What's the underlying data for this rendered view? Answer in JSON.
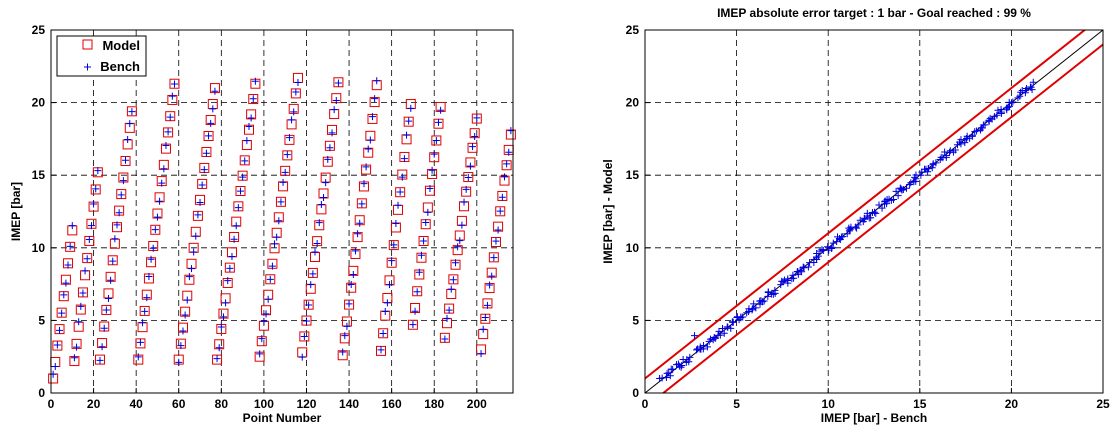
{
  "chart_data": [
    {
      "type": "scatter",
      "title": "",
      "xlabel": "Point Number",
      "ylabel": "IMEP [bar]",
      "xlim": [
        0,
        217
      ],
      "ylim": [
        0,
        25
      ],
      "xticks": [
        0,
        20,
        40,
        60,
        80,
        100,
        120,
        140,
        160,
        180,
        200
      ],
      "yticks": [
        0,
        5,
        10,
        15,
        20,
        25
      ],
      "grid": true,
      "legend": "top-left",
      "series": [
        {
          "name": "Model",
          "marker": "square",
          "color": "#e00000"
        },
        {
          "name": "Bench",
          "marker": "plus",
          "color": "#0000e0"
        }
      ],
      "sweeps": [
        {
          "start": 1,
          "n": 10,
          "lo": 1.0,
          "hi": 11.2
        },
        {
          "start": 11,
          "n": 12,
          "lo": 2.2,
          "hi": 15.2
        },
        {
          "start": 23,
          "n": 16,
          "lo": 2.3,
          "hi": 19.4
        },
        {
          "start": 41,
          "n": 18,
          "lo": 2.3,
          "hi": 21.3
        },
        {
          "start": 60,
          "n": 18,
          "lo": 2.3,
          "hi": 21.0
        },
        {
          "start": 78,
          "n": 19,
          "lo": 2.3,
          "hi": 21.3
        },
        {
          "start": 98,
          "n": 19,
          "lo": 2.5,
          "hi": 21.7
        },
        {
          "start": 118,
          "n": 18,
          "lo": 2.8,
          "hi": 21.4
        },
        {
          "start": 137,
          "n": 17,
          "lo": 2.6,
          "hi": 21.2
        },
        {
          "start": 155,
          "n": 15,
          "lo": 2.9,
          "hi": 19.9
        },
        {
          "start": 170,
          "n": 14,
          "lo": 4.7,
          "hi": 19.7
        },
        {
          "start": 185,
          "n": 16,
          "lo": 3.8,
          "hi": 18.9
        },
        {
          "start": 202,
          "n": 15,
          "lo": 3.0,
          "hi": 17.8
        }
      ]
    },
    {
      "type": "scatter",
      "title": "IMEP absolute error target : 1 bar - Goal reached : 99 %",
      "xlabel": "IMEP [bar] - Bench",
      "ylabel": "IMEP [bar] - Model",
      "xlim": [
        0,
        25
      ],
      "ylim": [
        0,
        25
      ],
      "xticks": [
        0,
        5,
        10,
        15,
        20,
        25
      ],
      "yticks": [
        0,
        5,
        10,
        15,
        20,
        25
      ],
      "grid": true,
      "reference_lines": [
        {
          "kind": "identity",
          "offset": 0,
          "color": "#000000"
        },
        {
          "kind": "tolerance",
          "offset": 1,
          "color": "#e00000"
        },
        {
          "kind": "tolerance",
          "offset": -1,
          "color": "#e00000"
        }
      ],
      "x_range": [
        0.9,
        21.2
      ],
      "point_count": 217,
      "marker": "plus",
      "color": "#0000e0"
    }
  ]
}
